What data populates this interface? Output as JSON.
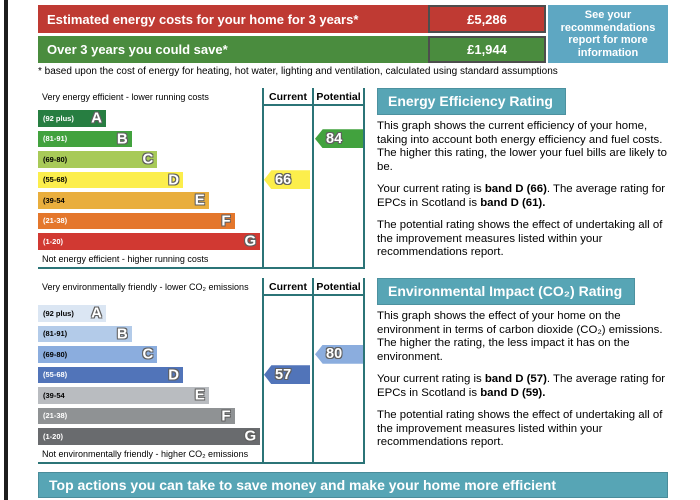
{
  "summary": {
    "rows": [
      {
        "label": "Estimated energy costs for your home for 3 years*",
        "value": "£5,286"
      },
      {
        "label": "Over 3 years you could save*",
        "value": "£1,944"
      }
    ],
    "info_box": "See your recommendations report for more information",
    "footnote": "* based upon the cost of energy for heating, hot water, lighting and ventilation, calculated using standard assumptions"
  },
  "colors": {
    "costs_row": "#bf3a33",
    "save_row": "#4a8c3e",
    "info_box": "#5ea7c2",
    "section_header": "#57a5b5",
    "bottom_bar": "#57a5b5",
    "chart_border": "#2b7477"
  },
  "chart_data": [
    {
      "type": "bar",
      "title": "Energy Efficiency Rating",
      "top_label": "Very energy efficient - lower running costs",
      "bottom_label": "Not energy efficient - higher running costs",
      "columns": [
        "Current",
        "Potential"
      ],
      "bands": [
        {
          "letter": "A",
          "range": "(92 plus)",
          "color": "#277e41",
          "range_color": "#ffffff"
        },
        {
          "letter": "B",
          "range": "(81-91)",
          "color": "#42a23e",
          "range_color": "#ffffff"
        },
        {
          "letter": "C",
          "range": "(69-80)",
          "color": "#a8ca58",
          "range_color": "#000000"
        },
        {
          "letter": "D",
          "range": "(55-68)",
          "color": "#fcee4c",
          "range_color": "#000000"
        },
        {
          "letter": "E",
          "range": "(39-54",
          "color": "#e9ae3d",
          "range_color": "#000000"
        },
        {
          "letter": "F",
          "range": "(21-38)",
          "color": "#e4772c",
          "range_color": "#ffffff"
        },
        {
          "letter": "G",
          "range": "(1-20)",
          "color": "#d13932",
          "range_color": "#ffffff"
        }
      ],
      "current": {
        "value": 66,
        "band": "D",
        "color": "#fcee4c"
      },
      "potential": {
        "value": 84,
        "band": "B",
        "color": "#42a23e"
      }
    },
    {
      "type": "bar",
      "title": "Environmental Impact (CO₂) Rating",
      "top_label": "Very environmentally friendly - lower CO₂ emissions",
      "bottom_label": "Not environmentally friendly - higher CO₂ emissions",
      "columns": [
        "Current",
        "Potential"
      ],
      "bands": [
        {
          "letter": "A",
          "range": "(92 plus)",
          "color": "#dbe6f3",
          "range_color": "#000000"
        },
        {
          "letter": "B",
          "range": "(81-91)",
          "color": "#b3cbe9",
          "range_color": "#000000"
        },
        {
          "letter": "C",
          "range": "(69-80)",
          "color": "#8badde",
          "range_color": "#000000"
        },
        {
          "letter": "D",
          "range": "(55-68)",
          "color": "#5174b9",
          "range_color": "#ffffff"
        },
        {
          "letter": "E",
          "range": "(39-54",
          "color": "#b9bcc0",
          "range_color": "#000000"
        },
        {
          "letter": "F",
          "range": "(21-38)",
          "color": "#8f9294",
          "range_color": "#ffffff"
        },
        {
          "letter": "G",
          "range": "(1-20)",
          "color": "#696b6e",
          "range_color": "#ffffff"
        }
      ],
      "current": {
        "value": 57,
        "band": "D",
        "color": "#5174b9"
      },
      "potential": {
        "value": 80,
        "band": "C",
        "color": "#8badde"
      }
    }
  ],
  "panels": [
    {
      "header": "Energy Efficiency Rating",
      "p1": "This graph shows the current efficiency of your home, taking into account both energy efficiency and fuel costs. The higher this rating, the lower your fuel bills are likely to be.",
      "rating_prefix": "Your current rating is ",
      "rating_bold1": "band D (66)",
      "rating_mid": ". The average rating for EPCs in Scotland is ",
      "rating_bold2": "band D (61).",
      "p3": "The potential rating shows the effect of undertaking all of the improvement measures listed within your recommendations report."
    },
    {
      "header": "Environmental Impact (CO₂) Rating",
      "p1": "This graph shows the effect of your home on the environment in terms of carbon dioxide (CO₂) emissions. The higher the rating, the less impact it has on the environment.",
      "rating_prefix": "Your current rating is ",
      "rating_bold1": "band D (57)",
      "rating_mid": ". The average rating for EPCs in Scotland is ",
      "rating_bold2": "band D (59).",
      "p3": "The potential rating shows the effect of undertaking all of the improvement measures listed within your recommendations report."
    }
  ],
  "bottom_bar": "Top actions you can take to save money and make your home more efficient"
}
